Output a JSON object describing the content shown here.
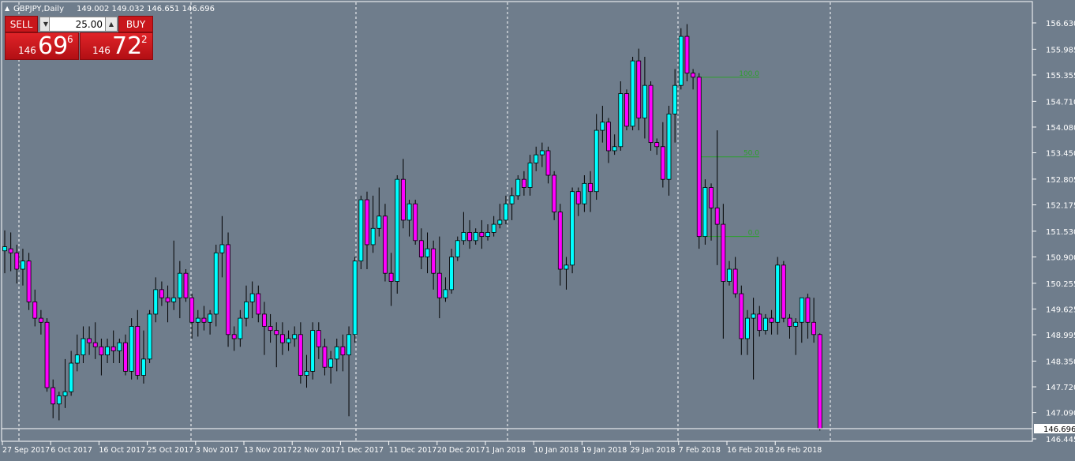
{
  "header": {
    "symbol_label": "GBPJPY,Daily",
    "ohlc": "149.002 149.032 146.651 146.696",
    "arrow": "triangle-up-icon"
  },
  "trade_panel": {
    "sell_label": "SELL",
    "buy_label": "BUY",
    "lot_value": "25.00",
    "bid_prefix": "146",
    "bid_big": "69",
    "bid_sup": "6",
    "ask_prefix": "146",
    "ask_big": "72",
    "ask_sup": "2"
  },
  "colors": {
    "background": "#6f7d8c",
    "bull": "#00ffff",
    "bear": "#ff00ff",
    "fib": "#2ca02c",
    "axis_bg": "#ffffff"
  },
  "chart_data": {
    "type": "candlestick",
    "yaxis_ticks": [
      "156.630",
      "155.985",
      "155.355",
      "154.710",
      "154.080",
      "153.450",
      "152.805",
      "152.175",
      "151.530",
      "150.900",
      "150.255",
      "149.625",
      "148.995",
      "148.350",
      "147.720",
      "147.090",
      "146.445"
    ],
    "current_price": "146.696",
    "x_labels": [
      "27 Sep 2017",
      "6 Oct 2017",
      "16 Oct 2017",
      "25 Oct 2017",
      "3 Nov 2017",
      "13 Nov 2017",
      "22 Nov 2017",
      "1 Dec 2017",
      "11 Dec 2017",
      "20 Dec 2017",
      "1 Jan 2018",
      "10 Jan 2018",
      "19 Jan 2018",
      "29 Jan 2018",
      "7 Feb 2018",
      "16 Feb 2018",
      "26 Feb 2018"
    ],
    "fib_levels": [
      {
        "label": "100.0",
        "price": 155.3
      },
      {
        "label": "50.0",
        "price": 153.35
      },
      {
        "label": "0.0",
        "price": 151.4
      }
    ],
    "candles": [
      {
        "o": 151.05,
        "h": 151.55,
        "l": 150.5,
        "c": 151.15
      },
      {
        "o": 151.1,
        "h": 151.5,
        "l": 150.55,
        "c": 151.0
      },
      {
        "o": 151.0,
        "h": 151.2,
        "l": 150.25,
        "c": 150.6
      },
      {
        "o": 150.6,
        "h": 151.1,
        "l": 150.2,
        "c": 150.8
      },
      {
        "o": 150.8,
        "h": 151.0,
        "l": 149.6,
        "c": 149.8
      },
      {
        "o": 149.8,
        "h": 150.1,
        "l": 149.2,
        "c": 149.4
      },
      {
        "o": 149.4,
        "h": 149.6,
        "l": 149.0,
        "c": 149.3
      },
      {
        "o": 149.3,
        "h": 149.4,
        "l": 147.6,
        "c": 147.7
      },
      {
        "o": 147.7,
        "h": 147.9,
        "l": 146.95,
        "c": 147.3
      },
      {
        "o": 147.3,
        "h": 147.6,
        "l": 146.9,
        "c": 147.5
      },
      {
        "o": 147.5,
        "h": 148.4,
        "l": 147.2,
        "c": 147.6
      },
      {
        "o": 147.6,
        "h": 148.6,
        "l": 147.5,
        "c": 148.3
      },
      {
        "o": 148.3,
        "h": 149.0,
        "l": 148.1,
        "c": 148.5
      },
      {
        "o": 148.5,
        "h": 149.2,
        "l": 148.3,
        "c": 148.9
      },
      {
        "o": 148.9,
        "h": 149.2,
        "l": 148.5,
        "c": 148.8
      },
      {
        "o": 148.8,
        "h": 149.3,
        "l": 148.4,
        "c": 148.7
      },
      {
        "o": 148.7,
        "h": 148.9,
        "l": 148.0,
        "c": 148.5
      },
      {
        "o": 148.5,
        "h": 148.9,
        "l": 148.3,
        "c": 148.7
      },
      {
        "o": 148.7,
        "h": 149.1,
        "l": 148.3,
        "c": 148.6
      },
      {
        "o": 148.6,
        "h": 148.9,
        "l": 148.3,
        "c": 148.8
      },
      {
        "o": 148.8,
        "h": 149.0,
        "l": 148.0,
        "c": 148.1
      },
      {
        "o": 148.1,
        "h": 149.4,
        "l": 147.9,
        "c": 149.2
      },
      {
        "o": 149.2,
        "h": 149.6,
        "l": 147.9,
        "c": 148.0
      },
      {
        "o": 148.0,
        "h": 149.1,
        "l": 147.8,
        "c": 148.4
      },
      {
        "o": 148.4,
        "h": 149.6,
        "l": 148.3,
        "c": 149.5
      },
      {
        "o": 149.5,
        "h": 150.4,
        "l": 149.3,
        "c": 150.1
      },
      {
        "o": 150.1,
        "h": 150.3,
        "l": 149.7,
        "c": 149.9
      },
      {
        "o": 149.9,
        "h": 150.2,
        "l": 149.3,
        "c": 149.8
      },
      {
        "o": 149.8,
        "h": 151.3,
        "l": 149.6,
        "c": 149.9
      },
      {
        "o": 149.9,
        "h": 150.8,
        "l": 149.4,
        "c": 150.5
      },
      {
        "o": 150.5,
        "h": 150.6,
        "l": 149.8,
        "c": 149.9
      },
      {
        "o": 149.9,
        "h": 150.0,
        "l": 148.9,
        "c": 149.3
      },
      {
        "o": 149.3,
        "h": 149.6,
        "l": 148.95,
        "c": 149.4
      },
      {
        "o": 149.4,
        "h": 149.7,
        "l": 149.1,
        "c": 149.3
      },
      {
        "o": 149.3,
        "h": 149.6,
        "l": 149.0,
        "c": 149.5
      },
      {
        "o": 149.5,
        "h": 151.2,
        "l": 149.2,
        "c": 151.0
      },
      {
        "o": 151.0,
        "h": 151.9,
        "l": 150.4,
        "c": 151.2
      },
      {
        "o": 151.2,
        "h": 151.5,
        "l": 148.7,
        "c": 149.0
      },
      {
        "o": 149.0,
        "h": 149.2,
        "l": 148.6,
        "c": 148.9
      },
      {
        "o": 148.9,
        "h": 149.6,
        "l": 148.7,
        "c": 149.4
      },
      {
        "o": 149.4,
        "h": 150.2,
        "l": 149.2,
        "c": 149.8
      },
      {
        "o": 149.8,
        "h": 150.3,
        "l": 149.4,
        "c": 150.0
      },
      {
        "o": 150.0,
        "h": 150.2,
        "l": 149.3,
        "c": 149.5
      },
      {
        "o": 149.5,
        "h": 149.8,
        "l": 148.5,
        "c": 149.2
      },
      {
        "o": 149.2,
        "h": 149.5,
        "l": 148.8,
        "c": 149.1
      },
      {
        "o": 149.1,
        "h": 149.3,
        "l": 148.2,
        "c": 149.0
      },
      {
        "o": 149.0,
        "h": 149.3,
        "l": 148.5,
        "c": 148.8
      },
      {
        "o": 148.8,
        "h": 149.1,
        "l": 148.6,
        "c": 148.9
      },
      {
        "o": 148.9,
        "h": 149.2,
        "l": 148.7,
        "c": 149.0
      },
      {
        "o": 149.0,
        "h": 149.3,
        "l": 147.8,
        "c": 148.0
      },
      {
        "o": 148.0,
        "h": 148.5,
        "l": 147.7,
        "c": 148.1
      },
      {
        "o": 148.1,
        "h": 149.3,
        "l": 147.9,
        "c": 149.1
      },
      {
        "o": 149.1,
        "h": 149.3,
        "l": 148.4,
        "c": 148.7
      },
      {
        "o": 148.7,
        "h": 148.9,
        "l": 148.0,
        "c": 148.2
      },
      {
        "o": 148.2,
        "h": 148.6,
        "l": 147.8,
        "c": 148.4
      },
      {
        "o": 148.4,
        "h": 148.9,
        "l": 148.1,
        "c": 148.7
      },
      {
        "o": 148.7,
        "h": 149.0,
        "l": 148.1,
        "c": 148.5
      },
      {
        "o": 148.5,
        "h": 149.2,
        "l": 147.0,
        "c": 149.0
      },
      {
        "o": 149.0,
        "h": 150.9,
        "l": 148.8,
        "c": 150.8
      },
      {
        "o": 150.8,
        "h": 152.4,
        "l": 150.6,
        "c": 152.3
      },
      {
        "o": 152.3,
        "h": 152.5,
        "l": 150.6,
        "c": 151.2
      },
      {
        "o": 151.2,
        "h": 152.4,
        "l": 151.0,
        "c": 151.6
      },
      {
        "o": 151.6,
        "h": 152.6,
        "l": 151.4,
        "c": 151.9
      },
      {
        "o": 151.9,
        "h": 152.2,
        "l": 150.3,
        "c": 150.5
      },
      {
        "o": 150.5,
        "h": 151.0,
        "l": 149.7,
        "c": 150.3
      },
      {
        "o": 150.3,
        "h": 152.9,
        "l": 150.0,
        "c": 152.8
      },
      {
        "o": 152.8,
        "h": 153.3,
        "l": 151.6,
        "c": 151.8
      },
      {
        "o": 151.8,
        "h": 152.3,
        "l": 151.4,
        "c": 152.2
      },
      {
        "o": 152.2,
        "h": 152.3,
        "l": 151.2,
        "c": 151.3
      },
      {
        "o": 151.3,
        "h": 151.6,
        "l": 150.6,
        "c": 150.9
      },
      {
        "o": 150.9,
        "h": 151.5,
        "l": 150.5,
        "c": 151.1
      },
      {
        "o": 151.1,
        "h": 151.3,
        "l": 150.1,
        "c": 150.5
      },
      {
        "o": 150.5,
        "h": 151.4,
        "l": 149.4,
        "c": 149.9
      },
      {
        "o": 149.9,
        "h": 150.4,
        "l": 149.8,
        "c": 150.1
      },
      {
        "o": 150.1,
        "h": 151.1,
        "l": 150.0,
        "c": 150.9
      },
      {
        "o": 150.9,
        "h": 151.4,
        "l": 150.8,
        "c": 151.3
      },
      {
        "o": 151.3,
        "h": 152.0,
        "l": 151.2,
        "c": 151.5
      },
      {
        "o": 151.5,
        "h": 151.8,
        "l": 151.1,
        "c": 151.3
      },
      {
        "o": 151.3,
        "h": 151.6,
        "l": 151.2,
        "c": 151.5
      },
      {
        "o": 151.5,
        "h": 151.8,
        "l": 151.1,
        "c": 151.4
      },
      {
        "o": 151.4,
        "h": 151.7,
        "l": 151.3,
        "c": 151.5
      },
      {
        "o": 151.5,
        "h": 151.9,
        "l": 151.4,
        "c": 151.7
      },
      {
        "o": 151.7,
        "h": 152.2,
        "l": 151.6,
        "c": 151.8
      },
      {
        "o": 151.8,
        "h": 152.4,
        "l": 151.7,
        "c": 152.2
      },
      {
        "o": 152.2,
        "h": 152.6,
        "l": 151.8,
        "c": 152.4
      },
      {
        "o": 152.4,
        "h": 152.9,
        "l": 152.3,
        "c": 152.8
      },
      {
        "o": 152.8,
        "h": 153.0,
        "l": 152.4,
        "c": 152.6
      },
      {
        "o": 152.6,
        "h": 153.4,
        "l": 152.4,
        "c": 153.2
      },
      {
        "o": 153.2,
        "h": 153.6,
        "l": 153.0,
        "c": 153.4
      },
      {
        "o": 153.4,
        "h": 153.7,
        "l": 153.1,
        "c": 153.5
      },
      {
        "o": 153.5,
        "h": 153.6,
        "l": 152.7,
        "c": 152.9
      },
      {
        "o": 152.9,
        "h": 153.0,
        "l": 151.8,
        "c": 152.0
      },
      {
        "o": 152.0,
        "h": 152.2,
        "l": 150.2,
        "c": 150.6
      },
      {
        "o": 150.6,
        "h": 150.9,
        "l": 150.1,
        "c": 150.7
      },
      {
        "o": 150.7,
        "h": 152.6,
        "l": 150.5,
        "c": 152.5
      },
      {
        "o": 152.5,
        "h": 152.6,
        "l": 151.9,
        "c": 152.2
      },
      {
        "o": 152.2,
        "h": 152.9,
        "l": 152.0,
        "c": 152.7
      },
      {
        "o": 152.7,
        "h": 153.0,
        "l": 152.0,
        "c": 152.5
      },
      {
        "o": 152.5,
        "h": 154.4,
        "l": 152.3,
        "c": 154.0
      },
      {
        "o": 154.0,
        "h": 154.6,
        "l": 153.7,
        "c": 154.2
      },
      {
        "o": 154.2,
        "h": 154.3,
        "l": 153.2,
        "c": 153.5
      },
      {
        "o": 153.5,
        "h": 153.9,
        "l": 153.4,
        "c": 153.6
      },
      {
        "o": 153.6,
        "h": 155.2,
        "l": 153.5,
        "c": 154.9
      },
      {
        "o": 154.9,
        "h": 155.0,
        "l": 154.0,
        "c": 154.1
      },
      {
        "o": 154.1,
        "h": 155.8,
        "l": 154.0,
        "c": 155.7
      },
      {
        "o": 155.7,
        "h": 156.0,
        "l": 154.0,
        "c": 154.3
      },
      {
        "o": 154.3,
        "h": 155.8,
        "l": 153.8,
        "c": 155.1
      },
      {
        "o": 155.1,
        "h": 155.2,
        "l": 153.5,
        "c": 153.7
      },
      {
        "o": 153.7,
        "h": 153.8,
        "l": 153.4,
        "c": 153.6
      },
      {
        "o": 153.6,
        "h": 154.2,
        "l": 152.6,
        "c": 152.8
      },
      {
        "o": 152.8,
        "h": 154.6,
        "l": 152.4,
        "c": 154.4
      },
      {
        "o": 154.4,
        "h": 155.5,
        "l": 153.7,
        "c": 155.1
      },
      {
        "o": 155.1,
        "h": 156.5,
        "l": 155.0,
        "c": 156.3
      },
      {
        "o": 156.3,
        "h": 156.6,
        "l": 155.2,
        "c": 155.4
      },
      {
        "o": 155.4,
        "h": 155.5,
        "l": 155.0,
        "c": 155.3
      },
      {
        "o": 155.3,
        "h": 155.4,
        "l": 151.1,
        "c": 151.4
      },
      {
        "o": 151.4,
        "h": 152.8,
        "l": 151.2,
        "c": 152.6
      },
      {
        "o": 152.6,
        "h": 152.7,
        "l": 151.3,
        "c": 152.1
      },
      {
        "o": 152.1,
        "h": 154.0,
        "l": 150.7,
        "c": 151.7
      },
      {
        "o": 151.7,
        "h": 152.2,
        "l": 148.9,
        "c": 150.3
      },
      {
        "o": 150.3,
        "h": 150.8,
        "l": 150.2,
        "c": 150.6
      },
      {
        "o": 150.6,
        "h": 150.9,
        "l": 149.9,
        "c": 150.0
      },
      {
        "o": 150.0,
        "h": 150.2,
        "l": 148.5,
        "c": 148.9
      },
      {
        "o": 148.9,
        "h": 149.6,
        "l": 148.5,
        "c": 149.4
      },
      {
        "o": 149.4,
        "h": 149.9,
        "l": 147.9,
        "c": 149.5
      },
      {
        "o": 149.5,
        "h": 149.7,
        "l": 148.95,
        "c": 149.1
      },
      {
        "o": 149.1,
        "h": 149.5,
        "l": 149.0,
        "c": 149.4
      },
      {
        "o": 149.4,
        "h": 149.6,
        "l": 149.0,
        "c": 149.3
      },
      {
        "o": 149.3,
        "h": 150.9,
        "l": 149.0,
        "c": 150.7
      },
      {
        "o": 150.7,
        "h": 150.8,
        "l": 149.3,
        "c": 149.4
      },
      {
        "o": 149.4,
        "h": 149.5,
        "l": 148.9,
        "c": 149.2
      },
      {
        "o": 149.2,
        "h": 149.4,
        "l": 148.5,
        "c": 149.3
      },
      {
        "o": 149.3,
        "h": 149.9,
        "l": 148.8,
        "c": 149.9
      },
      {
        "o": 149.9,
        "h": 150.0,
        "l": 148.9,
        "c": 149.3
      },
      {
        "o": 149.3,
        "h": 149.9,
        "l": 148.8,
        "c": 149.0
      },
      {
        "o": 149.0,
        "h": 149.03,
        "l": 146.65,
        "c": 146.7
      }
    ]
  }
}
